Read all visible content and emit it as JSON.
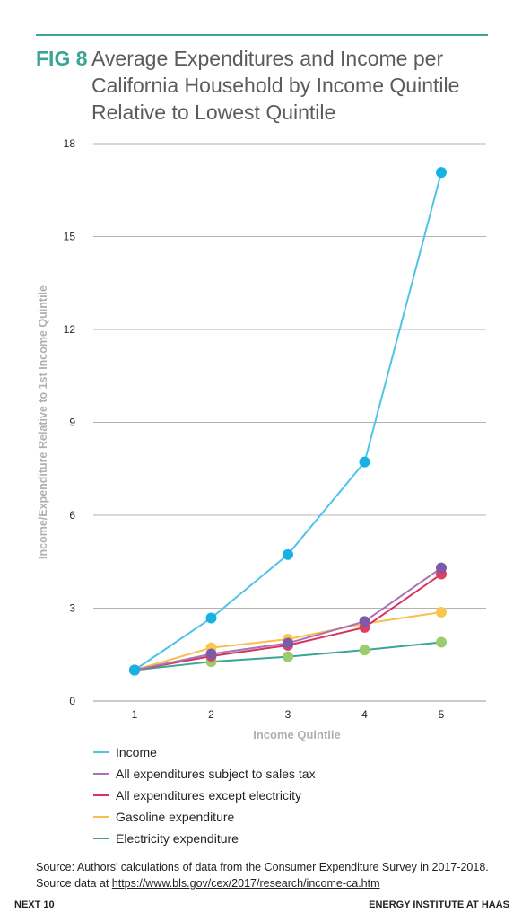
{
  "figure": {
    "label": "FIG 8",
    "title": "Average Expenditures and Income per California Household by Income Quintile Relative to Lowest Quintile"
  },
  "chart_data": {
    "type": "line",
    "title": "Average Expenditures and Income per California Household by Income Quintile Relative to Lowest Quintile",
    "xlabel": "Income Quintile",
    "ylabel": "Income/Expenditure Relative to 1st Income Quintile",
    "x": [
      1,
      2,
      3,
      4,
      5
    ],
    "x_ticks": [
      "1",
      "2",
      "3",
      "4",
      "5"
    ],
    "y_ticks": [
      0,
      3,
      6,
      9,
      12,
      15,
      18
    ],
    "ylim": [
      0,
      18
    ],
    "grid": "horizontal",
    "legend_position": "bottom",
    "series": [
      {
        "name": "Income",
        "color": "#4fc3e8",
        "marker_color": "#17b1e3",
        "values": [
          1.0,
          2.68,
          4.73,
          7.72,
          17.07
        ]
      },
      {
        "name": "All expenditures subject to sales tax",
        "color": "#a973b5",
        "marker_color": "#7e5aaa",
        "values": [
          1.0,
          1.52,
          1.87,
          2.57,
          4.3
        ]
      },
      {
        "name": "All expenditures except electricity",
        "color": "#d6345c",
        "marker_color": "#e0405f",
        "values": [
          1.0,
          1.45,
          1.8,
          2.38,
          4.1
        ]
      },
      {
        "name": "Gasoline expenditure",
        "color": "#f8c04b",
        "marker_color": "#f9c74f",
        "values": [
          1.0,
          1.72,
          2.0,
          2.5,
          2.87
        ]
      },
      {
        "name": "Electricity expenditure",
        "color": "#3aa597",
        "marker_color": "#9ccc6b",
        "values": [
          1.0,
          1.27,
          1.43,
          1.65,
          1.9
        ]
      }
    ]
  },
  "source": {
    "prefix": "Source: Authors' calculations of data from the Consumer Expenditure Survey in 2017-2018. Source data at ",
    "link": "https://www.bls.gov/cex/2017/research/income-ca.htm"
  },
  "footer": {
    "left": "NEXT 10",
    "right": "ENERGY INSTITUTE AT HAAS"
  }
}
